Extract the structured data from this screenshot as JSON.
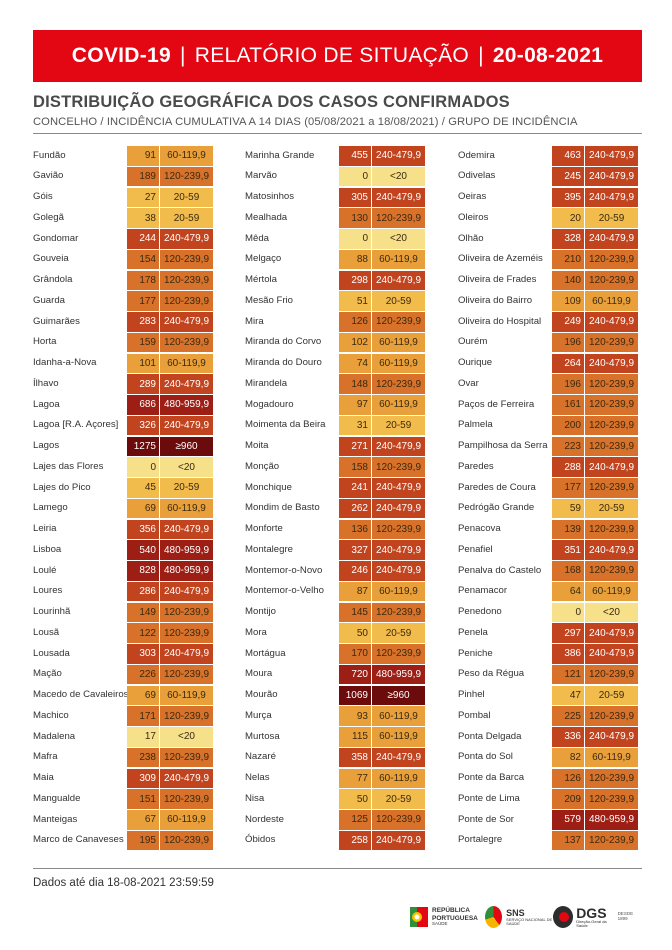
{
  "header": {
    "covid": "COVID-19",
    "sep1": "|",
    "report": "RELATÓRIO DE SITUAÇÃO",
    "sep2": "|",
    "date": "20-08-2021"
  },
  "title": "DISTRIBUIÇÃO GEOGRÁFICA DOS CASOS CONFIRMADOS",
  "subtitle": "CONCELHO / INCIDÊNCIA CUMULATIVA A 14 DIAS (05/08/2021 a 18/08/2021) / GRUPO DE INCIDÊNCIA",
  "group_colors": {
    "<20": "#f6e08a",
    "20-59": "#f2bc4c",
    "60-119,9": "#e9a03a",
    "120-239,9": "#d8722a",
    "240-479,9": "#c1441f",
    "480-959,9": "#9c1e15",
    "≥960": "#6b0b0b"
  },
  "columns": [
    [
      {
        "name": "Fundão",
        "value": "91",
        "group": "60-119,9"
      },
      {
        "name": "Gavião",
        "value": "189",
        "group": "120-239,9"
      },
      {
        "name": "Góis",
        "value": "27",
        "group": "20-59"
      },
      {
        "name": "Golegã",
        "value": "38",
        "group": "20-59"
      },
      {
        "name": "Gondomar",
        "value": "244",
        "group": "240-479,9"
      },
      {
        "name": "Gouveia",
        "value": "154",
        "group": "120-239,9"
      },
      {
        "name": "Grândola",
        "value": "178",
        "group": "120-239,9"
      },
      {
        "name": "Guarda",
        "value": "177",
        "group": "120-239,9"
      },
      {
        "name": "Guimarães",
        "value": "283",
        "group": "240-479,9"
      },
      {
        "name": "Horta",
        "value": "159",
        "group": "120-239,9"
      },
      {
        "name": "Idanha-a-Nova",
        "value": "101",
        "group": "60-119,9"
      },
      {
        "name": "Ílhavo",
        "value": "289",
        "group": "240-479,9"
      },
      {
        "name": "Lagoa",
        "value": "686",
        "group": "480-959,9"
      },
      {
        "name": "Lagoa [R.A. Açores]",
        "value": "326",
        "group": "240-479,9"
      },
      {
        "name": "Lagos",
        "value": "1275",
        "group": "≥960"
      },
      {
        "name": "Lajes das Flores",
        "value": "0",
        "group": "<20"
      },
      {
        "name": "Lajes do Pico",
        "value": "45",
        "group": "20-59"
      },
      {
        "name": "Lamego",
        "value": "69",
        "group": "60-119,9"
      },
      {
        "name": "Leiria",
        "value": "356",
        "group": "240-479,9"
      },
      {
        "name": "Lisboa",
        "value": "540",
        "group": "480-959,9"
      },
      {
        "name": "Loulé",
        "value": "828",
        "group": "480-959,9"
      },
      {
        "name": "Loures",
        "value": "286",
        "group": "240-479,9"
      },
      {
        "name": "Lourinhã",
        "value": "149",
        "group": "120-239,9"
      },
      {
        "name": "Lousã",
        "value": "122",
        "group": "120-239,9"
      },
      {
        "name": "Lousada",
        "value": "303",
        "group": "240-479,9"
      },
      {
        "name": "Mação",
        "value": "226",
        "group": "120-239,9"
      },
      {
        "name": "Macedo de Cavaleiros",
        "value": "69",
        "group": "60-119,9"
      },
      {
        "name": "Machico",
        "value": "171",
        "group": "120-239,9"
      },
      {
        "name": "Madalena",
        "value": "17",
        "group": "<20"
      },
      {
        "name": "Mafra",
        "value": "238",
        "group": "120-239,9"
      },
      {
        "name": "Maia",
        "value": "309",
        "group": "240-479,9"
      },
      {
        "name": "Mangualde",
        "value": "151",
        "group": "120-239,9"
      },
      {
        "name": "Manteigas",
        "value": "67",
        "group": "60-119,9"
      },
      {
        "name": "Marco de Canaveses",
        "value": "195",
        "group": "120-239,9"
      }
    ],
    [
      {
        "name": "Marinha Grande",
        "value": "455",
        "group": "240-479,9"
      },
      {
        "name": "Marvão",
        "value": "0",
        "group": "<20"
      },
      {
        "name": "Matosinhos",
        "value": "305",
        "group": "240-479,9"
      },
      {
        "name": "Mealhada",
        "value": "130",
        "group": "120-239,9"
      },
      {
        "name": "Mêda",
        "value": "0",
        "group": "<20"
      },
      {
        "name": "Melgaço",
        "value": "88",
        "group": "60-119,9"
      },
      {
        "name": "Mértola",
        "value": "298",
        "group": "240-479,9"
      },
      {
        "name": "Mesão Frio",
        "value": "51",
        "group": "20-59"
      },
      {
        "name": "Mira",
        "value": "126",
        "group": "120-239,9"
      },
      {
        "name": "Miranda do Corvo",
        "value": "102",
        "group": "60-119,9"
      },
      {
        "name": "Miranda do Douro",
        "value": "74",
        "group": "60-119,9"
      },
      {
        "name": "Mirandela",
        "value": "148",
        "group": "120-239,9"
      },
      {
        "name": "Mogadouro",
        "value": "97",
        "group": "60-119,9"
      },
      {
        "name": "Moimenta da Beira",
        "value": "31",
        "group": "20-59"
      },
      {
        "name": "Moita",
        "value": "271",
        "group": "240-479,9"
      },
      {
        "name": "Monção",
        "value": "158",
        "group": "120-239,9"
      },
      {
        "name": "Monchique",
        "value": "241",
        "group": "240-479,9"
      },
      {
        "name": "Mondim de Basto",
        "value": "262",
        "group": "240-479,9"
      },
      {
        "name": "Monforte",
        "value": "136",
        "group": "120-239,9"
      },
      {
        "name": "Montalegre",
        "value": "327",
        "group": "240-479,9"
      },
      {
        "name": "Montemor-o-Novo",
        "value": "246",
        "group": "240-479,9"
      },
      {
        "name": "Montemor-o-Velho",
        "value": "87",
        "group": "60-119,9"
      },
      {
        "name": "Montijo",
        "value": "145",
        "group": "120-239,9"
      },
      {
        "name": "Mora",
        "value": "50",
        "group": "20-59"
      },
      {
        "name": "Mortágua",
        "value": "170",
        "group": "120-239,9"
      },
      {
        "name": "Moura",
        "value": "720",
        "group": "480-959,9"
      },
      {
        "name": "Mourão",
        "value": "1069",
        "group": "≥960"
      },
      {
        "name": "Murça",
        "value": "93",
        "group": "60-119,9"
      },
      {
        "name": "Murtosa",
        "value": "115",
        "group": "60-119,9"
      },
      {
        "name": "Nazaré",
        "value": "358",
        "group": "240-479,9"
      },
      {
        "name": "Nelas",
        "value": "77",
        "group": "60-119,9"
      },
      {
        "name": "Nisa",
        "value": "50",
        "group": "20-59"
      },
      {
        "name": "Nordeste",
        "value": "125",
        "group": "120-239,9"
      },
      {
        "name": "Óbidos",
        "value": "258",
        "group": "240-479,9"
      }
    ],
    [
      {
        "name": "Odemira",
        "value": "463",
        "group": "240-479,9"
      },
      {
        "name": "Odivelas",
        "value": "245",
        "group": "240-479,9"
      },
      {
        "name": "Oeiras",
        "value": "395",
        "group": "240-479,9"
      },
      {
        "name": "Oleiros",
        "value": "20",
        "group": "20-59"
      },
      {
        "name": "Olhão",
        "value": "328",
        "group": "240-479,9"
      },
      {
        "name": "Oliveira de Azeméis",
        "value": "210",
        "group": "120-239,9"
      },
      {
        "name": "Oliveira de Frades",
        "value": "140",
        "group": "120-239,9"
      },
      {
        "name": "Oliveira do Bairro",
        "value": "109",
        "group": "60-119,9"
      },
      {
        "name": "Oliveira do Hospital",
        "value": "249",
        "group": "240-479,9"
      },
      {
        "name": "Ourém",
        "value": "196",
        "group": "120-239,9"
      },
      {
        "name": "Ourique",
        "value": "264",
        "group": "240-479,9"
      },
      {
        "name": "Ovar",
        "value": "196",
        "group": "120-239,9"
      },
      {
        "name": "Paços de Ferreira",
        "value": "161",
        "group": "120-239,9"
      },
      {
        "name": "Palmela",
        "value": "200",
        "group": "120-239,9"
      },
      {
        "name": "Pampilhosa da Serra",
        "value": "223",
        "group": "120-239,9"
      },
      {
        "name": "Paredes",
        "value": "288",
        "group": "240-479,9"
      },
      {
        "name": "Paredes de Coura",
        "value": "177",
        "group": "120-239,9"
      },
      {
        "name": "Pedrógão Grande",
        "value": "59",
        "group": "20-59"
      },
      {
        "name": "Penacova",
        "value": "139",
        "group": "120-239,9"
      },
      {
        "name": "Penafiel",
        "value": "351",
        "group": "240-479,9"
      },
      {
        "name": "Penalva do Castelo",
        "value": "168",
        "group": "120-239,9"
      },
      {
        "name": "Penamacor",
        "value": "64",
        "group": "60-119,9"
      },
      {
        "name": "Penedono",
        "value": "0",
        "group": "<20"
      },
      {
        "name": "Penela",
        "value": "297",
        "group": "240-479,9"
      },
      {
        "name": "Peniche",
        "value": "386",
        "group": "240-479,9"
      },
      {
        "name": "Peso da Régua",
        "value": "121",
        "group": "120-239,9"
      },
      {
        "name": "Pinhel",
        "value": "47",
        "group": "20-59"
      },
      {
        "name": "Pombal",
        "value": "225",
        "group": "120-239,9"
      },
      {
        "name": "Ponta Delgada",
        "value": "336",
        "group": "240-479,9"
      },
      {
        "name": "Ponta do Sol",
        "value": "82",
        "group": "60-119,9"
      },
      {
        "name": "Ponte da Barca",
        "value": "126",
        "group": "120-239,9"
      },
      {
        "name": "Ponte de Lima",
        "value": "209",
        "group": "120-239,9"
      },
      {
        "name": "Ponte de Sor",
        "value": "579",
        "group": "480-959,9"
      },
      {
        "name": "Portalegre",
        "value": "137",
        "group": "120-239,9"
      }
    ]
  ],
  "footer": {
    "date_note": "Dados até dia 18-08-2021 23:59:59",
    "logo_rp": {
      "line1": "REPÚBLICA",
      "line2": "PORTUGUESA",
      "line3": "SAÚDE"
    },
    "logo_sns": {
      "name": "SNS",
      "sub": "SERVIÇO NACIONAL DE SAÚDE"
    },
    "logo_dgs": {
      "name": "DGS",
      "sub": "Direção-Geral da Saúde",
      "since": "DESDE 1899"
    }
  }
}
